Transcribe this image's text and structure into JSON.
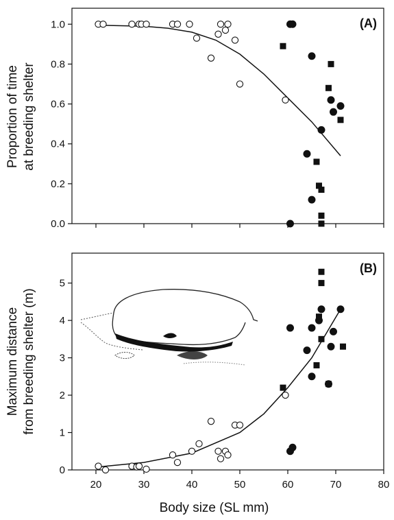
{
  "chart_data": [
    {
      "type": "scatter",
      "panel_label": "(A)",
      "ylabel_lines": [
        "Proportion of time",
        "at breeding shelter"
      ],
      "xlabel": "",
      "xlim": [
        15,
        80
      ],
      "ylim": [
        0,
        1.08
      ],
      "xticks": [
        20,
        30,
        40,
        50,
        60,
        70,
        80
      ],
      "yticks": [
        0.0,
        0.2,
        0.4,
        0.6,
        0.8,
        1.0
      ],
      "ytick_labels": [
        "0.0",
        "0.2",
        "0.4",
        "0.6",
        "0.8",
        "1.0"
      ],
      "show_x_tick_labels": false,
      "grid": false,
      "series": [
        {
          "marker": "open-circle",
          "points": [
            [
              20.5,
              1.0
            ],
            [
              21.5,
              1.0
            ],
            [
              27.5,
              1.0
            ],
            [
              29,
              1.0
            ],
            [
              29.5,
              1.0
            ],
            [
              30.5,
              1.0
            ],
            [
              36,
              1.0
            ],
            [
              37,
              1.0
            ],
            [
              39.5,
              1.0
            ],
            [
              41,
              0.93
            ],
            [
              44,
              0.83
            ],
            [
              45.5,
              0.95
            ],
            [
              46,
              1.0
            ],
            [
              47,
              0.97
            ],
            [
              47.5,
              1.0
            ],
            [
              49,
              0.92
            ],
            [
              50,
              0.7
            ],
            [
              59.5,
              0.62
            ]
          ]
        },
        {
          "marker": "filled-circle",
          "points": [
            [
              60.5,
              1.0
            ],
            [
              61,
              1.0
            ],
            [
              65,
              0.84
            ],
            [
              69,
              0.62
            ],
            [
              69.5,
              0.56
            ],
            [
              71,
              0.59
            ],
            [
              67,
              0.47
            ],
            [
              64,
              0.35
            ],
            [
              65,
              0.12
            ],
            [
              60.5,
              0.0
            ]
          ]
        },
        {
          "marker": "filled-square",
          "points": [
            [
              59,
              0.89
            ],
            [
              69,
              0.8
            ],
            [
              68.5,
              0.68
            ],
            [
              71,
              0.52
            ],
            [
              66,
              0.31
            ],
            [
              66.5,
              0.19
            ],
            [
              67,
              0.17
            ],
            [
              67,
              0.04
            ],
            [
              67,
              0.0
            ]
          ]
        }
      ],
      "fit_curve": {
        "type": "logistic",
        "x_range": [
          20.5,
          71
        ],
        "points": [
          [
            20.5,
            0.995
          ],
          [
            30,
            0.99
          ],
          [
            35,
            0.98
          ],
          [
            40,
            0.96
          ],
          [
            45,
            0.92
          ],
          [
            50,
            0.85
          ],
          [
            55,
            0.75
          ],
          [
            60,
            0.63
          ],
          [
            65,
            0.51
          ],
          [
            71,
            0.34
          ]
        ]
      }
    },
    {
      "type": "scatter",
      "panel_label": "(B)",
      "ylabel_lines": [
        "Maximum distance",
        "from breeding shelter (m)"
      ],
      "xlabel": "Body size (SL mm)",
      "xlim": [
        15,
        80
      ],
      "ylim": [
        0,
        5.8
      ],
      "xticks": [
        20,
        30,
        40,
        50,
        60,
        70,
        80
      ],
      "xtick_labels": [
        "20",
        "30",
        "40",
        "50",
        "60",
        "70",
        "80"
      ],
      "yticks": [
        0,
        1,
        2,
        3,
        4,
        5
      ],
      "ytick_labels": [
        "0",
        "1",
        "2",
        "3",
        "4",
        "5"
      ],
      "show_x_tick_labels": true,
      "grid": false,
      "series": [
        {
          "marker": "open-circle",
          "points": [
            [
              20.5,
              0.1
            ],
            [
              22,
              0.0
            ],
            [
              27.5,
              0.1
            ],
            [
              28.5,
              0.08
            ],
            [
              29,
              0.1
            ],
            [
              30.5,
              0.02
            ],
            [
              36,
              0.4
            ],
            [
              37,
              0.2
            ],
            [
              40,
              0.5
            ],
            [
              41.5,
              0.7
            ],
            [
              44,
              1.3
            ],
            [
              45.5,
              0.5
            ],
            [
              46,
              0.3
            ],
            [
              47,
              0.5
            ],
            [
              47.5,
              0.4
            ],
            [
              49,
              1.2
            ],
            [
              50,
              1.2
            ],
            [
              59.5,
              2.0
            ]
          ]
        },
        {
          "marker": "filled-circle",
          "points": [
            [
              60.5,
              0.5
            ],
            [
              61,
              0.6
            ],
            [
              60.5,
              3.8
            ],
            [
              64,
              3.2
            ],
            [
              65,
              3.8
            ],
            [
              65,
              2.5
            ],
            [
              66.5,
              4.0
            ],
            [
              67,
              4.3
            ],
            [
              68.5,
              2.3
            ],
            [
              69,
              3.3
            ],
            [
              69.5,
              3.7
            ],
            [
              71,
              4.3
            ]
          ]
        },
        {
          "marker": "filled-square",
          "points": [
            [
              59,
              2.2
            ],
            [
              66,
              2.8
            ],
            [
              66.5,
              4.1
            ],
            [
              67,
              5.3
            ],
            [
              67,
              5.0
            ],
            [
              67,
              3.5
            ],
            [
              68.5,
              2.3
            ],
            [
              71.5,
              3.3
            ]
          ]
        }
      ],
      "fit_curve": {
        "type": "exponential",
        "x_range": [
          20.5,
          71
        ],
        "points": [
          [
            20.5,
            0.08
          ],
          [
            30,
            0.2
          ],
          [
            40,
            0.45
          ],
          [
            50,
            1.0
          ],
          [
            55,
            1.5
          ],
          [
            60,
            2.2
          ],
          [
            65,
            3.0
          ],
          [
            71,
            4.3
          ]
        ]
      },
      "illustration": "fish-shelter-rock-drawing"
    }
  ]
}
